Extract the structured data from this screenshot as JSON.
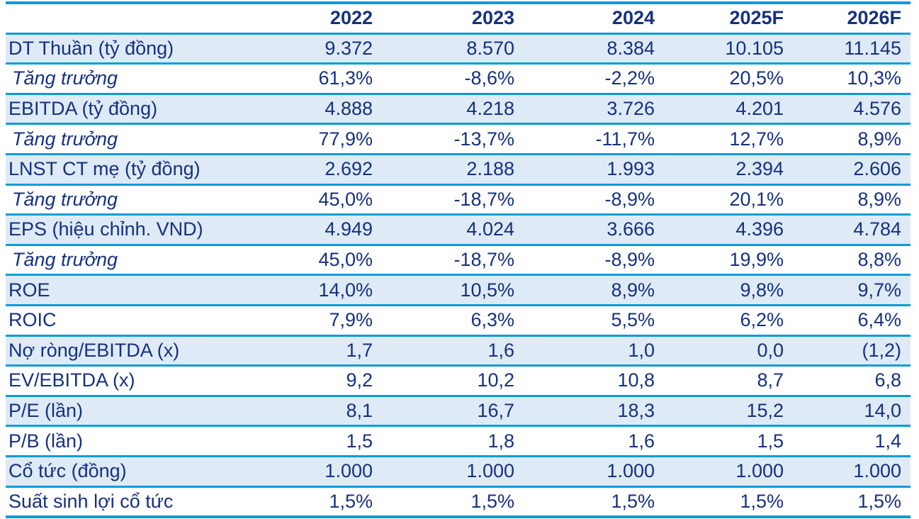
{
  "colors": {
    "text_navy": "#16317f",
    "line_cyan": "#0a9cd8",
    "shaded_row_bg": "#deeaf6",
    "background": "#ffffff"
  },
  "table": {
    "header": [
      "",
      "2022",
      "2023",
      "2024",
      "2025F",
      "2026F"
    ],
    "rows": [
      {
        "label": "DT Thuần (tỷ đồng)",
        "shaded": true,
        "italic": false,
        "values": [
          "9.372",
          "8.570",
          "8.384",
          "10.105",
          "11.145"
        ]
      },
      {
        "label": "Tăng trưởng",
        "shaded": false,
        "italic": true,
        "values": [
          "61,3%",
          "-8,6%",
          "-2,2%",
          "20,5%",
          "10,3%"
        ]
      },
      {
        "label": "EBITDA (tỷ đồng)",
        "shaded": true,
        "italic": false,
        "values": [
          "4.888",
          "4.218",
          "3.726",
          "4.201",
          "4.576"
        ]
      },
      {
        "label": "Tăng trưởng",
        "shaded": false,
        "italic": true,
        "values": [
          "77,9%",
          "-13,7%",
          "-11,7%",
          "12,7%",
          "8,9%"
        ]
      },
      {
        "label": "LNST CT mẹ (tỷ đồng)",
        "shaded": true,
        "italic": false,
        "values": [
          "2.692",
          "2.188",
          "1.993",
          "2.394",
          "2.606"
        ]
      },
      {
        "label": "Tăng trưởng",
        "shaded": false,
        "italic": true,
        "values": [
          "45,0%",
          "-18,7%",
          "-8,9%",
          "20,1%",
          "8,9%"
        ]
      },
      {
        "label": "EPS (hiệu chỉnh. VND)",
        "shaded": true,
        "italic": false,
        "values": [
          "4.949",
          "4.024",
          "3.666",
          "4.396",
          "4.784"
        ]
      },
      {
        "label": "Tăng trưởng",
        "shaded": false,
        "italic": true,
        "values": [
          "45,0%",
          "-18,7%",
          "-8,9%",
          "19,9%",
          "8,8%"
        ]
      },
      {
        "label": "ROE",
        "shaded": true,
        "italic": false,
        "values": [
          "14,0%",
          "10,5%",
          "8,9%",
          "9,8%",
          "9,7%"
        ]
      },
      {
        "label": "ROIC",
        "shaded": false,
        "italic": false,
        "values": [
          "7,9%",
          "6,3%",
          "5,5%",
          "6,2%",
          "6,4%"
        ]
      },
      {
        "label": "Nợ ròng/EBITDA (x)",
        "shaded": true,
        "italic": false,
        "values": [
          "1,7",
          "1,6",
          "1,0",
          "0,0",
          "(1,2)"
        ]
      },
      {
        "label": "EV/EBITDA (x)",
        "shaded": false,
        "italic": false,
        "values": [
          "9,2",
          "10,2",
          "10,8",
          "8,7",
          "6,8"
        ]
      },
      {
        "label": "P/E (lần)",
        "shaded": true,
        "italic": false,
        "values": [
          "8,1",
          "16,7",
          "18,3",
          "15,2",
          "14,0"
        ]
      },
      {
        "label": "P/B (lần)",
        "shaded": false,
        "italic": false,
        "values": [
          "1,5",
          "1,8",
          "1,6",
          "1,5",
          "1,4"
        ]
      },
      {
        "label": "Cổ tức (đồng)",
        "shaded": true,
        "italic": false,
        "values": [
          "1.000",
          "1.000",
          "1.000",
          "1.000",
          "1.000"
        ]
      },
      {
        "label": "Suất sinh lợi cổ tức",
        "shaded": false,
        "italic": false,
        "values": [
          "1,5%",
          "1,5%",
          "1,5%",
          "1,5%",
          "1,5%"
        ]
      }
    ]
  }
}
